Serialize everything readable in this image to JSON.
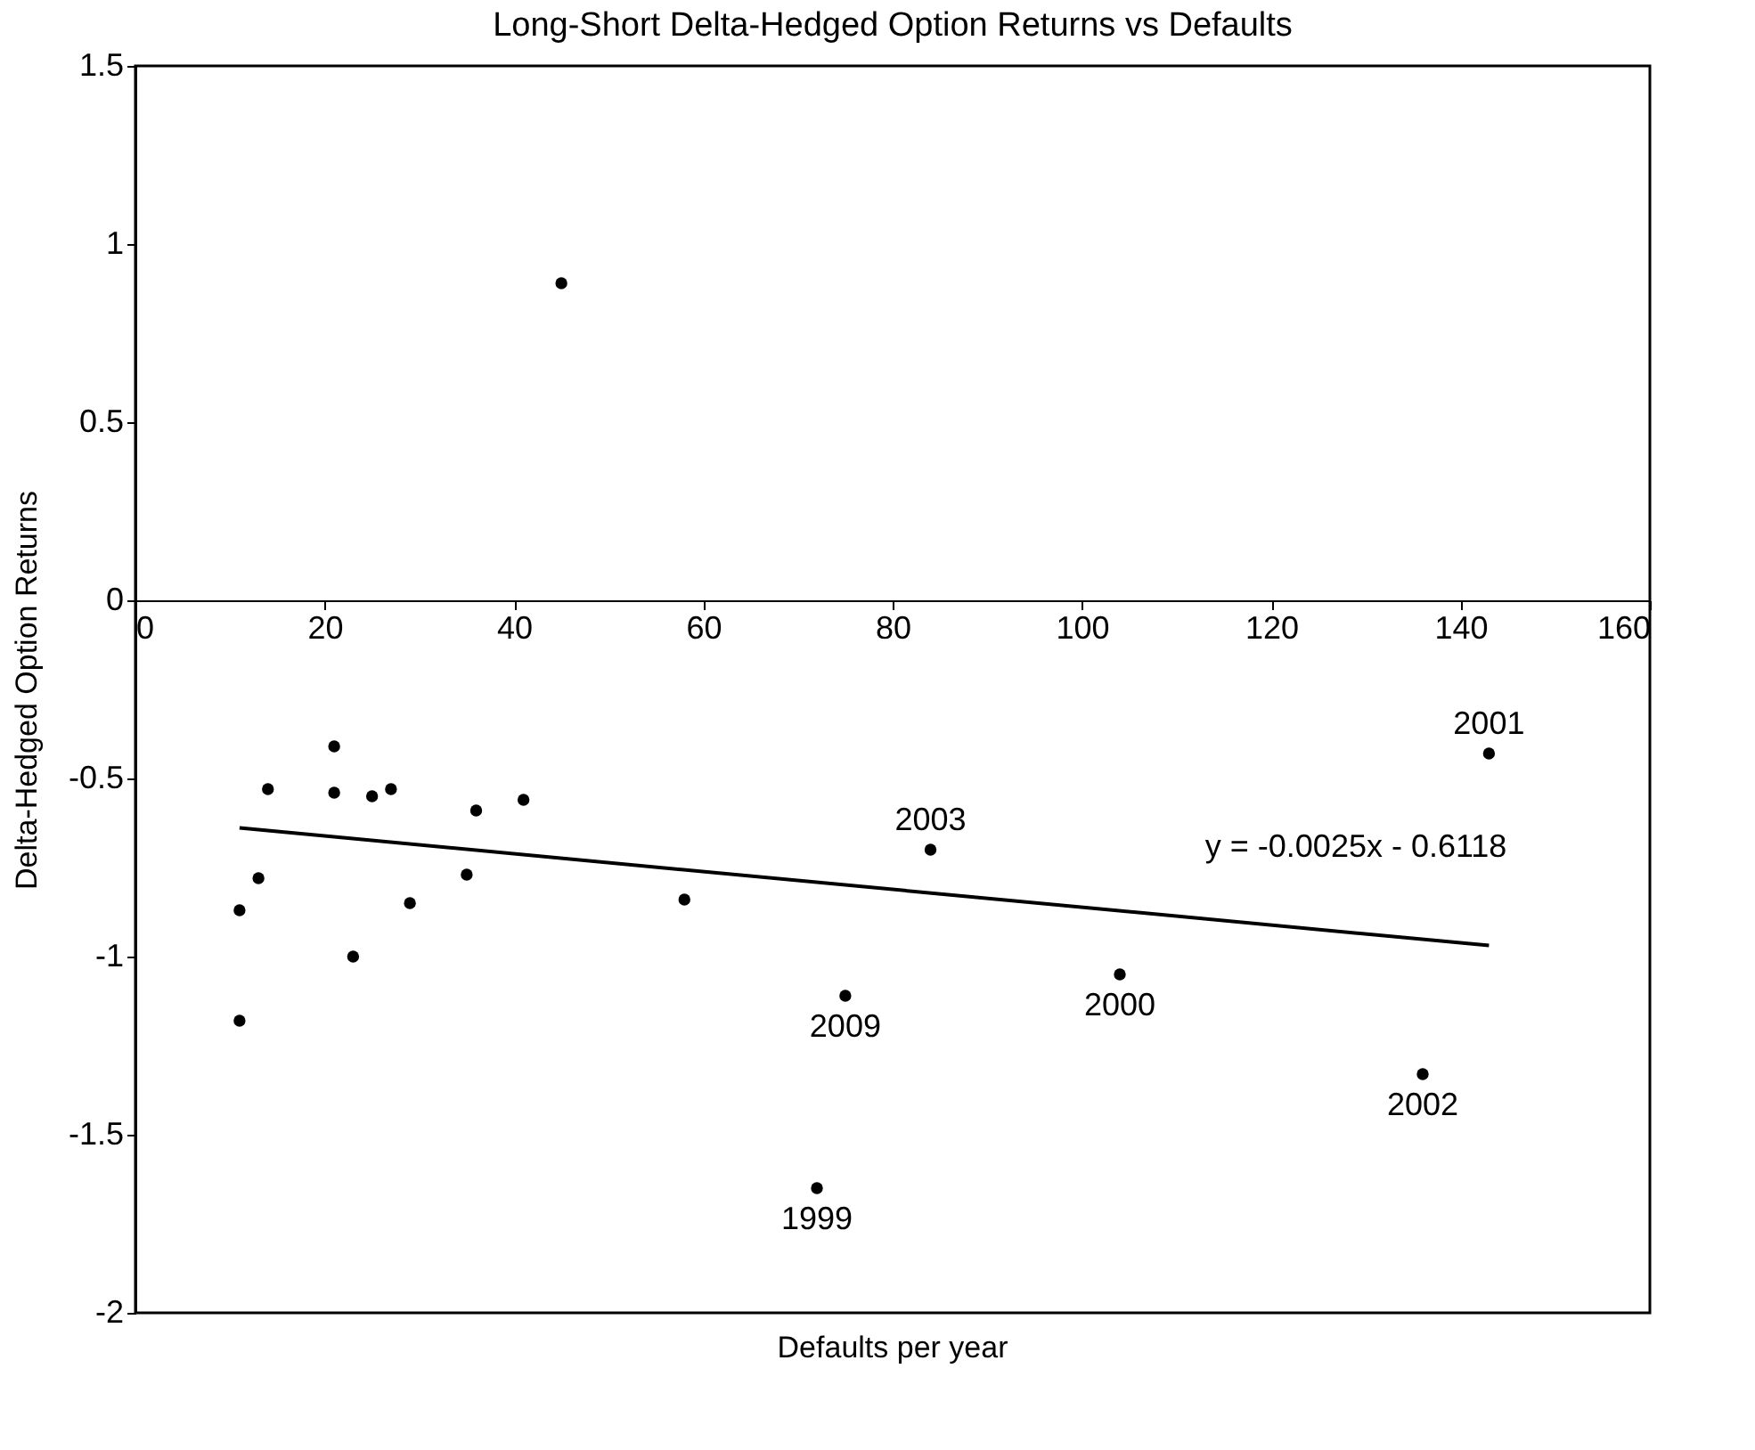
{
  "chart_data": {
    "type": "scatter",
    "title": "Long-Short Delta-Hedged Option Returns vs Defaults",
    "xlabel": "Defaults per year",
    "ylabel": "Delta-Hedged Option Returns",
    "xlim": [
      0,
      160
    ],
    "xticks": [
      0,
      20,
      40,
      60,
      80,
      100,
      120,
      140,
      160
    ],
    "ylim": [
      -2,
      1.5
    ],
    "yticks": [
      -2,
      -1.5,
      -1,
      -0.5,
      0,
      0.5,
      1,
      1.5
    ],
    "grid": false,
    "series": [
      {
        "color": "#000000",
        "marker": "circle",
        "x": [
          21,
          14,
          21,
          25,
          27,
          36,
          41,
          13,
          11,
          29,
          35,
          23,
          11,
          58,
          45,
          84,
          75,
          104,
          143,
          136,
          72
        ],
        "values": [
          -0.41,
          -0.53,
          -0.54,
          -0.55,
          -0.53,
          -0.59,
          -0.56,
          -0.78,
          -0.87,
          -0.85,
          -0.77,
          -1.0,
          -1.18,
          -0.84,
          0.89,
          -0.7,
          -1.11,
          -1.05,
          -0.43,
          -1.33,
          -1.65
        ]
      },
      {
        "type": "line",
        "color": "#000000",
        "x": [
          11,
          143
        ],
        "values": [
          -0.639,
          -0.969
        ],
        "line_style": "solid"
      }
    ],
    "annotations": [
      {
        "text": "2003",
        "x": 84,
        "y": -0.7
      },
      {
        "text": "2009",
        "x": 75,
        "y": -1.11
      },
      {
        "text": "2000",
        "x": 104,
        "y": -1.05
      },
      {
        "text": "2001",
        "x": 143,
        "y": -0.43
      },
      {
        "text": "2002",
        "x": 136,
        "y": -1.33
      },
      {
        "text": "1999",
        "x": 72,
        "y": -1.65
      },
      "y = -0.0025x - 0.6118"
    ]
  }
}
